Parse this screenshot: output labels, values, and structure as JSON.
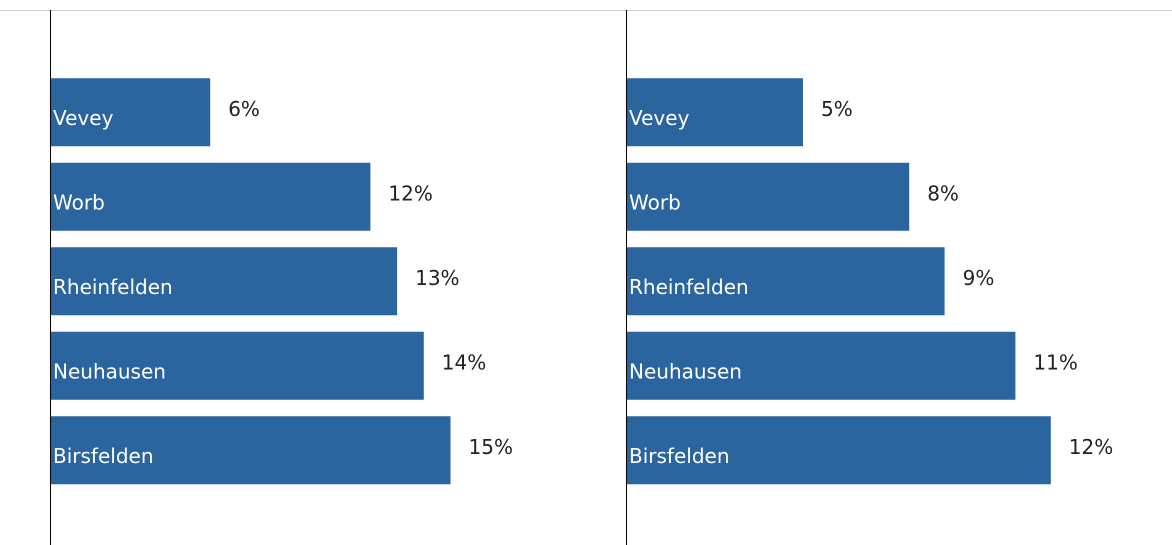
{
  "chart_data": [
    {
      "type": "bar",
      "categories": [
        "Vevey",
        "Worb",
        "Rheinfelden",
        "Neuhausen",
        "Birsfelden"
      ],
      "values": [
        6,
        12,
        13,
        14,
        15
      ],
      "value_labels": [
        "6%",
        "12%",
        "13%",
        "14%",
        "15%"
      ],
      "color": "#2b65a0",
      "xlim": [
        0,
        20
      ]
    },
    {
      "type": "bar",
      "categories": [
        "Vevey",
        "Worb",
        "Rheinfelden",
        "Neuhausen",
        "Birsfelden"
      ],
      "values": [
        5,
        8,
        9,
        11,
        12
      ],
      "value_labels": [
        "5%",
        "8%",
        "9%",
        "11%",
        "12%"
      ],
      "color": "#2b65a0",
      "xlim": [
        0,
        15
      ]
    }
  ]
}
